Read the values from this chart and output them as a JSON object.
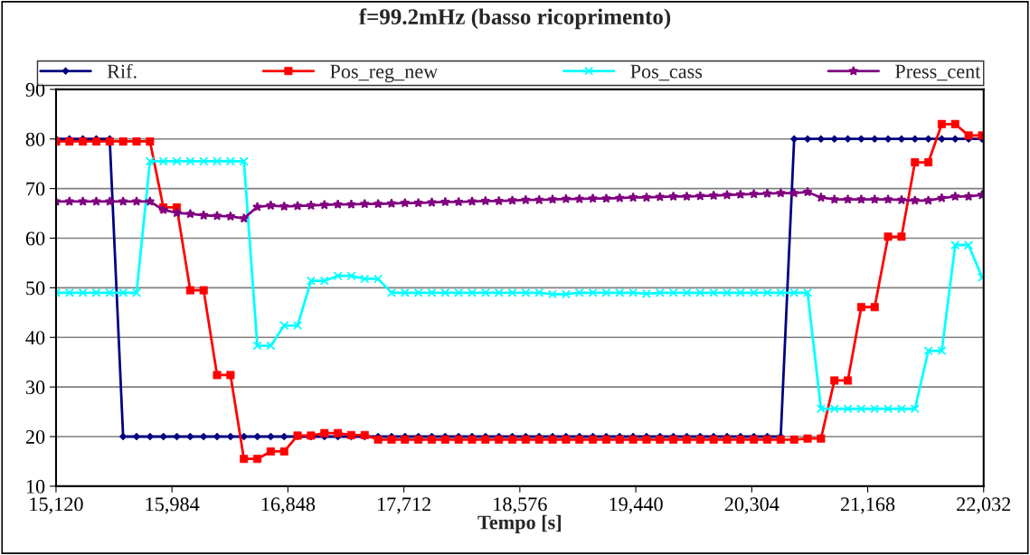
{
  "chart_data": {
    "type": "line",
    "title": "f=99.2mHz (basso ricoprimento)",
    "xlabel": "Tempo [s]",
    "x": [
      15120,
      15220,
      15320,
      15420,
      15520,
      15620,
      15720,
      15820,
      15920,
      16020,
      16120,
      16220,
      16320,
      16420,
      16520,
      16620,
      16720,
      16820,
      16920,
      17020,
      17120,
      17220,
      17320,
      17420,
      17520,
      17620,
      17720,
      17820,
      17920,
      18020,
      18120,
      18220,
      18320,
      18420,
      18520,
      18620,
      18720,
      18820,
      18920,
      19020,
      19120,
      19220,
      19320,
      19420,
      19520,
      19620,
      19720,
      19820,
      19920,
      20020,
      20120,
      20220,
      20320,
      20420,
      20520,
      20620,
      20720,
      20820,
      20920,
      21020,
      21120,
      21220,
      21320,
      21420,
      21520,
      21620,
      21720,
      21820,
      21920,
      22020
    ],
    "series": [
      {
        "name": "Rif.",
        "color": "#000080",
        "marker": "diamond",
        "values": [
          80,
          80,
          80,
          80,
          80,
          20,
          20,
          20,
          20,
          20,
          20,
          20,
          20,
          20,
          20,
          20,
          20,
          20,
          20,
          20,
          20,
          20,
          20,
          20,
          20,
          20,
          20,
          20,
          20,
          20,
          20,
          20,
          20,
          20,
          20,
          20,
          20,
          20,
          20,
          20,
          20,
          20,
          20,
          20,
          20,
          20,
          20,
          20,
          20,
          20,
          20,
          20,
          20,
          20,
          20,
          80,
          80,
          80,
          80,
          80,
          80,
          80,
          80,
          80,
          80,
          80,
          80,
          80,
          80,
          80
        ]
      },
      {
        "name": "Pos_reg_new",
        "color": "#ff0000",
        "marker": "square",
        "values": [
          79.5,
          79.5,
          79.5,
          79.5,
          79.5,
          79.5,
          79.5,
          79.5,
          66.2,
          66.2,
          49.5,
          49.5,
          32.4,
          32.4,
          15.5,
          15.5,
          17.0,
          17.0,
          20.2,
          20.2,
          20.7,
          20.7,
          20.3,
          20.3,
          19.4,
          19.4,
          19.4,
          19.4,
          19.4,
          19.4,
          19.4,
          19.4,
          19.4,
          19.4,
          19.4,
          19.4,
          19.4,
          19.4,
          19.4,
          19.4,
          19.4,
          19.4,
          19.4,
          19.4,
          19.4,
          19.4,
          19.4,
          19.4,
          19.4,
          19.4,
          19.4,
          19.4,
          19.4,
          19.4,
          19.4,
          19.4,
          19.6,
          19.6,
          31.3,
          31.3,
          46.1,
          46.1,
          60.3,
          60.3,
          75.3,
          75.3,
          83.0,
          83.0,
          80.7,
          80.7
        ]
      },
      {
        "name": "Pos_cass",
        "color": "#00ffff",
        "marker": "cross",
        "values": [
          49,
          49,
          49,
          49,
          49,
          49,
          49,
          75.5,
          75.5,
          75.5,
          75.5,
          75.5,
          75.5,
          75.5,
          75.5,
          38.3,
          38.3,
          42.4,
          42.4,
          51.4,
          51.4,
          52.4,
          52.4,
          51.8,
          51.8,
          49,
          49,
          49,
          49,
          49,
          49,
          49,
          49,
          49,
          49,
          49,
          49,
          48.7,
          48.7,
          49,
          49,
          49,
          49,
          49,
          48.8,
          49,
          49,
          49,
          49,
          49,
          49,
          49,
          49,
          49,
          49,
          49,
          49,
          25.6,
          25.6,
          25.6,
          25.6,
          25.6,
          25.6,
          25.6,
          25.6,
          37.3,
          37.3,
          58.6,
          58.6,
          52.1
        ]
      },
      {
        "name": "Press_cent",
        "color": "#800080",
        "marker": "star",
        "values": [
          67.4,
          67.4,
          67.4,
          67.4,
          67.4,
          67.4,
          67.4,
          67.4,
          65.7,
          65.1,
          64.9,
          64.6,
          64.5,
          64.4,
          64.0,
          66.3,
          66.6,
          66.4,
          66.5,
          66.6,
          66.7,
          66.8,
          66.8,
          66.9,
          66.9,
          67.0,
          67.1,
          67.1,
          67.2,
          67.3,
          67.3,
          67.4,
          67.5,
          67.5,
          67.6,
          67.7,
          67.7,
          67.8,
          67.9,
          67.9,
          68.0,
          68.0,
          68.1,
          68.2,
          68.2,
          68.3,
          68.4,
          68.4,
          68.5,
          68.6,
          68.7,
          68.8,
          68.9,
          69.0,
          69.1,
          69.1,
          69.3,
          68.2,
          67.8,
          67.8,
          67.8,
          67.8,
          67.8,
          67.7,
          67.6,
          67.6,
          68.1,
          68.4,
          68.4,
          68.7
        ]
      }
    ],
    "xlim": [
      15120,
      22032
    ],
    "xticks": [
      {
        "value": 15120,
        "label": "15,120"
      },
      {
        "value": 15984,
        "label": "15,984"
      },
      {
        "value": 16848,
        "label": "16,848"
      },
      {
        "value": 17712,
        "label": "17,712"
      },
      {
        "value": 18576,
        "label": "18,576"
      },
      {
        "value": 19440,
        "label": "19,440"
      },
      {
        "value": 20304,
        "label": "20,304"
      },
      {
        "value": 21168,
        "label": "21,168"
      },
      {
        "value": 22032,
        "label": "22,032"
      }
    ],
    "ylim": [
      10,
      90
    ],
    "yticks": [
      10,
      20,
      30,
      40,
      50,
      60,
      70,
      80,
      90
    ],
    "grid": "y",
    "legend": "top",
    "line_style": "solid"
  }
}
